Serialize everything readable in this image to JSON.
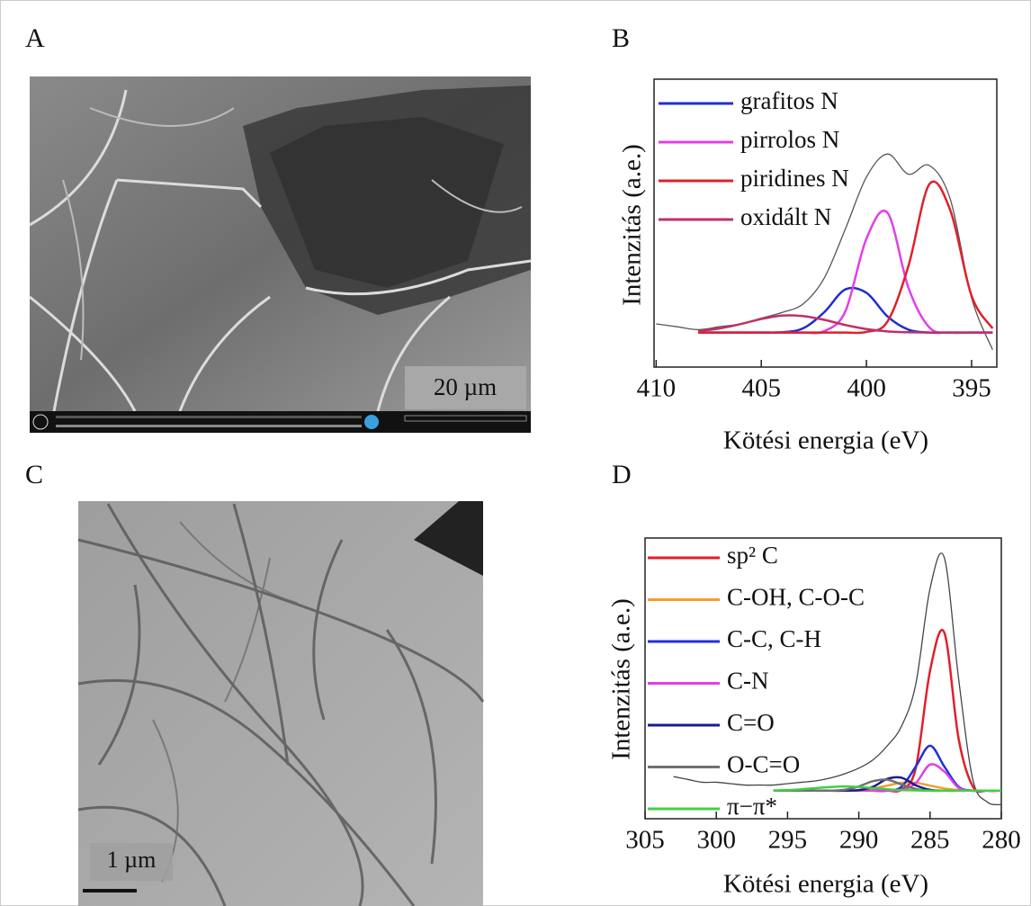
{
  "panels": [
    {
      "label": "A",
      "scale_bar": "20 µm"
    },
    {
      "label": "C",
      "scale_bar": "1 µm"
    }
  ],
  "chart_data": [
    {
      "type": "line",
      "panel_label": "B",
      "y_label": "Intenzitás (a.e.)",
      "x_label": "Kötési energia (eV)",
      "xlim": [
        410.1,
        393.8
      ],
      "xticks": [
        410,
        405,
        400,
        395
      ],
      "ylim": [
        0,
        100
      ],
      "series": [
        {
          "name": "grafitos N",
          "color": "#1f2fd0",
          "x": [
            408,
            407,
            406,
            405,
            404,
            403,
            402,
            401,
            400,
            399,
            398,
            397,
            396,
            395,
            394
          ],
          "values": [
            12,
            12,
            12,
            12,
            12.1,
            13.5,
            19.1,
            27,
            25.8,
            17.6,
            13,
            12,
            12,
            12,
            12
          ]
        },
        {
          "name": "pirrolos N",
          "color": "#e040e8",
          "x": [
            408,
            407,
            406,
            405,
            404,
            403,
            402,
            401,
            400,
            399,
            398,
            397,
            396,
            395,
            394
          ],
          "values": [
            12,
            12,
            12,
            12,
            12,
            12,
            12.5,
            19.4,
            44.6,
            53.6,
            27.5,
            13.7,
            12,
            12,
            12
          ]
        },
        {
          "name": "piridines N",
          "color": "#e0202a",
          "x": [
            408,
            407,
            406,
            405,
            404,
            403,
            402,
            401,
            400,
            399,
            398,
            397,
            396,
            395,
            394
          ],
          "values": [
            12,
            12,
            12,
            12,
            12,
            12,
            12,
            12,
            12.2,
            15.8,
            35.2,
            63.6,
            54.2,
            24.7,
            13.4
          ]
        },
        {
          "name": "oxidált N",
          "color": "#c0306a",
          "x": [
            408,
            407,
            406,
            405,
            404,
            403,
            402,
            401,
            400,
            399,
            398,
            397,
            396,
            395,
            394
          ],
          "values": [
            12.5,
            13.4,
            14.9,
            16.7,
            17.9,
            17.7,
            16.4,
            14.6,
            13.2,
            12.4,
            12.1,
            12,
            12,
            12,
            12
          ]
        },
        {
          "color": "#555555",
          "x": [
            410,
            409,
            408,
            407,
            406,
            405,
            404,
            403,
            402,
            401,
            400,
            399,
            398,
            397,
            396,
            395,
            394
          ],
          "values": [
            15,
            14,
            13,
            14,
            15,
            17,
            19,
            22,
            31,
            48,
            66,
            74,
            67,
            70,
            58,
            24,
            6
          ]
        }
      ]
    },
    {
      "type": "line",
      "panel_label": "D",
      "y_label": "Intenzitás (a.e.)",
      "x_label": "Kötési energia (eV)",
      "xlim": [
        305,
        280
      ],
      "xticks": [
        305,
        300,
        295,
        290,
        285,
        280
      ],
      "ylim": [
        0,
        100
      ],
      "series": [
        {
          "name": "sp² C",
          "color": "#e0202a",
          "x": [
            296,
            295,
            294,
            293,
            292,
            291,
            290,
            289,
            288,
            287,
            286,
            285,
            284,
            283,
            282,
            281,
            280
          ],
          "values": [
            10,
            10,
            10,
            10,
            10,
            10,
            10,
            10,
            10,
            10.4,
            18.1,
            52.7,
            66.3,
            28.6,
            11.5,
            10,
            10
          ]
        },
        {
          "name": "C-OH, C-O-C",
          "color": "#f0a030",
          "x": [
            296,
            295,
            294,
            293,
            292,
            291,
            290,
            289,
            288,
            287,
            286,
            285,
            284,
            283,
            282,
            281,
            280
          ],
          "values": [
            10,
            10,
            10,
            10,
            10,
            10,
            10.2,
            10.8,
            11.8,
            12.8,
            12.8,
            11.8,
            10.8,
            10.2,
            10,
            10,
            10
          ]
        },
        {
          "name": "C-C, C-H",
          "color": "#2030e0",
          "x": [
            296,
            295,
            294,
            293,
            292,
            291,
            290,
            289,
            288,
            287,
            286,
            285,
            284,
            283,
            282,
            281,
            280
          ],
          "values": [
            10,
            10,
            10,
            10,
            10,
            10,
            10,
            10,
            10,
            11.4,
            18.6,
            26,
            18.6,
            11.4,
            10,
            10,
            10
          ]
        },
        {
          "name": "C-N",
          "color": "#e040e8",
          "x": [
            296,
            295,
            294,
            293,
            292,
            291,
            290,
            289,
            288,
            287,
            286,
            285,
            284,
            283,
            282,
            281,
            280
          ],
          "values": [
            10,
            10,
            10,
            10,
            10,
            10,
            10,
            10,
            10,
            10.2,
            12.7,
            19.3,
            16.8,
            11,
            10,
            10,
            10
          ]
        },
        {
          "name": "C=O",
          "color": "#1a1a90",
          "x": [
            296,
            295,
            294,
            293,
            292,
            291,
            290,
            289,
            288,
            287,
            286,
            285,
            284,
            283,
            282,
            281,
            280
          ],
          "values": [
            10,
            10,
            10,
            10,
            10,
            10,
            10.2,
            11.4,
            14.2,
            14.6,
            11.9,
            10.3,
            10,
            10,
            10,
            10,
            10
          ]
        },
        {
          "name": "O-C=O",
          "color": "#707070",
          "x": [
            296,
            295,
            294,
            293,
            292,
            291,
            290,
            289,
            288,
            287,
            286,
            285,
            284,
            283,
            282,
            281,
            280
          ],
          "values": [
            10,
            10,
            10,
            10,
            10,
            10.3,
            11.5,
            13.4,
            13.9,
            12.2,
            10.6,
            10,
            10,
            10,
            10,
            10,
            10
          ]
        },
        {
          "name": "π−π*",
          "color": "#40d040",
          "x": [
            296,
            295,
            294,
            293,
            292,
            291,
            290,
            289,
            288,
            287,
            286,
            285,
            284,
            283,
            282,
            281,
            280
          ],
          "values": [
            10.1,
            10.2,
            10.5,
            10.9,
            11.3,
            11.5,
            11.3,
            10.9,
            10.5,
            10.2,
            10.1,
            10,
            10,
            10,
            10,
            10,
            10
          ]
        },
        {
          "color": "#404848",
          "x": [
            303,
            302,
            301,
            300,
            299,
            298,
            297,
            296,
            295,
            294,
            293,
            292,
            291,
            290,
            289,
            288,
            287,
            286,
            285,
            284,
            283,
            282,
            281,
            280
          ],
          "values": [
            15,
            14,
            13,
            13,
            12.5,
            12,
            12,
            12,
            12.5,
            13,
            13.5,
            14.5,
            16,
            18,
            21,
            26,
            33,
            48,
            82,
            93,
            50,
            14,
            6,
            5
          ]
        }
      ]
    }
  ]
}
